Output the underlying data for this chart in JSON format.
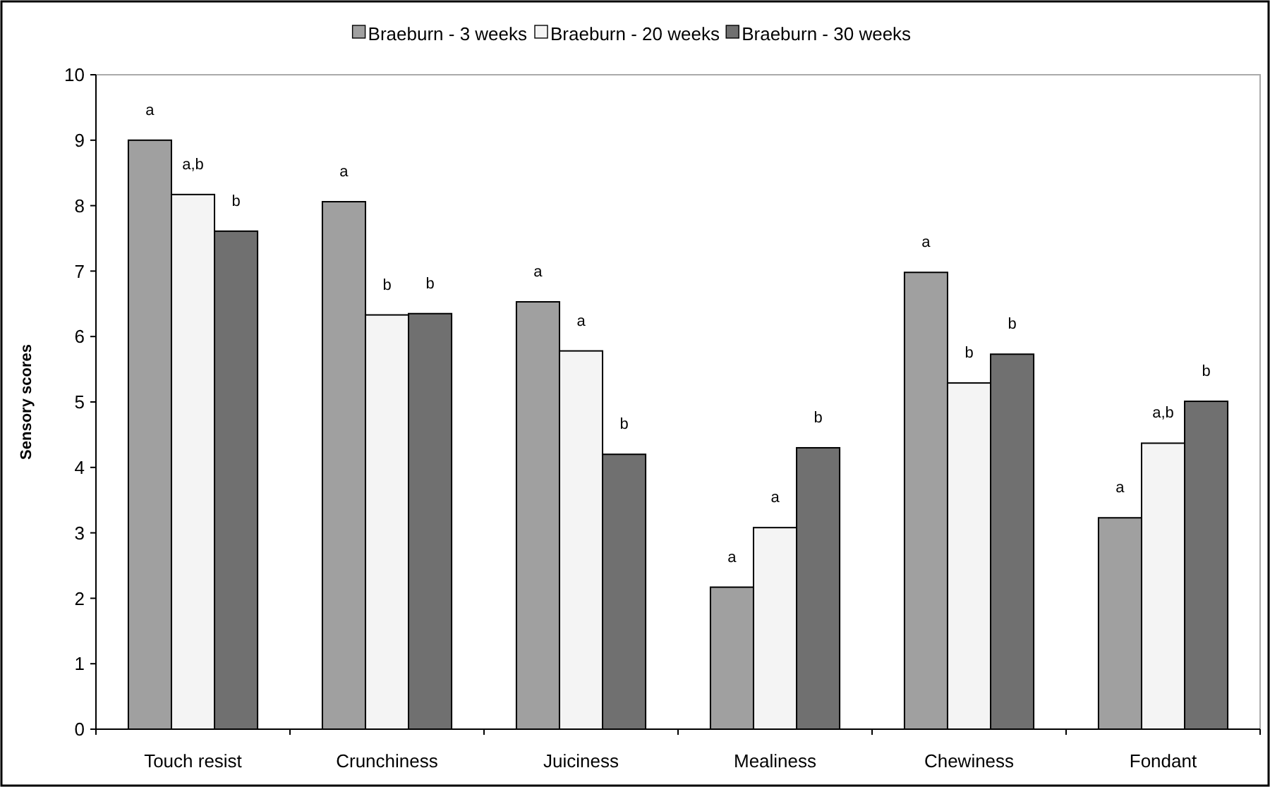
{
  "chart_data": {
    "type": "bar",
    "ylabel": "Sensory scores",
    "categories": [
      "Touch resist",
      "Crunchiness",
      "Juiciness",
      "Mealiness",
      "Chewiness",
      "Fondant"
    ],
    "series": [
      {
        "name": "Braeburn - 3 weeks",
        "color": "#a0a0a0",
        "values": [
          9.0,
          8.06,
          6.53,
          2.17,
          6.98,
          3.23
        ]
      },
      {
        "name": "Braeburn - 20 weeks",
        "color": "#f4f4f4",
        "values": [
          8.17,
          6.33,
          5.78,
          3.08,
          5.29,
          4.37
        ]
      },
      {
        "name": "Braeburn - 30 weeks",
        "color": "#707070",
        "values": [
          7.61,
          6.35,
          4.2,
          4.3,
          5.73,
          5.01
        ]
      }
    ],
    "ylim": [
      0,
      10
    ],
    "yticks": [
      0,
      1,
      2,
      3,
      4,
      5,
      6,
      7,
      8,
      9,
      10
    ],
    "grid": false,
    "legend": "top",
    "annotations": [
      "a",
      "a,b",
      "b",
      "a",
      "b",
      "b",
      "a",
      "a",
      "b",
      "a",
      "a",
      "b",
      "a",
      "b",
      "b",
      "a",
      "a,b",
      "b"
    ]
  }
}
